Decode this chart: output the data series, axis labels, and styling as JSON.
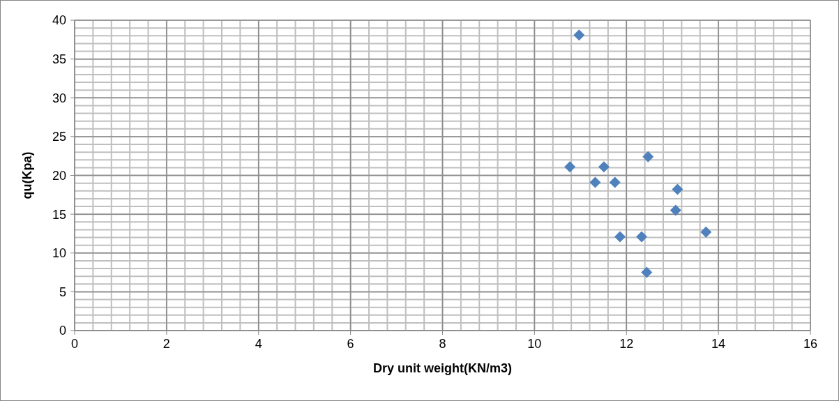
{
  "chart_data": {
    "type": "scatter",
    "xlabel": "Dry unit weight(KN/m3)",
    "ylabel": "qu(Kpa)",
    "x": [
      10.97,
      10.77,
      11.51,
      11.32,
      11.75,
      12.47,
      13.11,
      13.07,
      11.86,
      12.33,
      13.73,
      12.44
    ],
    "series": [
      {
        "color": "#4f81bd",
        "values": [
          38.1,
          21.1,
          21.1,
          19.1,
          19.1,
          22.4,
          18.2,
          15.5,
          12.1,
          12.1,
          12.7,
          7.5
        ]
      }
    ],
    "xlim": [
      0,
      16
    ],
    "xticks": [
      0,
      2,
      4,
      6,
      8,
      10,
      12,
      14,
      16
    ],
    "ylim": [
      0,
      40
    ],
    "yticks": [
      0,
      5,
      10,
      15,
      20,
      25,
      30,
      35,
      40
    ],
    "grid": true,
    "marker": "diamond",
    "legend": false
  }
}
